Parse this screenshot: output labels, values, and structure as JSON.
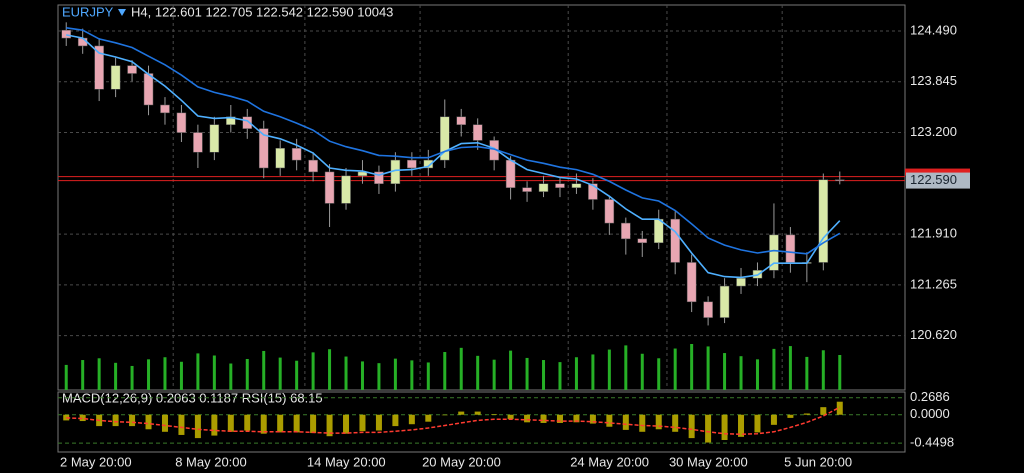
{
  "chart_data": {
    "type": "candlestick",
    "symbol": "EURJPY",
    "info": "H4, 122.601 122.705 122.542 122.590 10043",
    "categories": [
      "2 May 20:00",
      null,
      null,
      null,
      null,
      null,
      null,
      "8 May 20:00",
      null,
      null,
      null,
      null,
      null,
      null,
      null,
      "14 May 20:00",
      null,
      null,
      null,
      null,
      null,
      null,
      "20 May 20:00",
      null,
      null,
      null,
      null,
      null,
      null,
      null,
      null,
      "24 May 20:00",
      null,
      null,
      null,
      null,
      null,
      "30 May 20:00",
      null,
      null,
      null,
      null,
      null,
      null,
      "5 Jun 20:00",
      null,
      null,
      null
    ],
    "open": [
      124.5,
      124.4,
      124.3,
      123.75,
      124.05,
      123.95,
      123.55,
      123.45,
      123.2,
      122.95,
      123.3,
      123.4,
      123.25,
      122.75,
      123.0,
      122.85,
      122.7,
      122.3,
      122.65,
      122.7,
      122.55,
      122.85,
      122.75,
      122.85,
      123.4,
      123.3,
      123.1,
      122.85,
      122.5,
      122.45,
      122.55,
      122.5,
      122.55,
      122.35,
      122.05,
      121.85,
      121.8,
      122.1,
      121.55,
      121.05,
      120.85,
      121.25,
      121.35,
      121.45,
      121.9,
      121.55,
      121.55,
      122.601
    ],
    "high": [
      124.6,
      124.52,
      124.4,
      124.15,
      124.12,
      124.05,
      123.65,
      123.55,
      123.3,
      123.4,
      123.55,
      123.5,
      123.35,
      123.1,
      123.12,
      122.95,
      122.8,
      122.75,
      122.85,
      122.78,
      122.95,
      122.95,
      122.98,
      123.62,
      123.5,
      123.38,
      123.15,
      122.9,
      122.58,
      122.65,
      122.62,
      122.68,
      122.62,
      122.4,
      122.12,
      121.95,
      122.22,
      122.2,
      121.65,
      121.12,
      121.35,
      121.48,
      121.55,
      122.3,
      122.0,
      121.68,
      122.68,
      122.705
    ],
    "low": [
      124.3,
      124.2,
      123.6,
      123.65,
      123.85,
      123.42,
      123.3,
      123.08,
      122.75,
      122.85,
      123.2,
      123.12,
      122.62,
      122.65,
      122.72,
      122.58,
      122.0,
      122.22,
      122.55,
      122.42,
      122.45,
      122.65,
      122.65,
      122.75,
      123.15,
      122.98,
      122.72,
      122.35,
      122.32,
      122.38,
      122.38,
      122.42,
      122.22,
      121.9,
      121.65,
      121.62,
      121.72,
      121.4,
      120.92,
      120.75,
      120.78,
      121.15,
      121.25,
      121.35,
      121.42,
      121.3,
      121.45,
      122.542
    ],
    "close": [
      124.4,
      124.3,
      123.75,
      124.05,
      123.95,
      123.55,
      123.45,
      123.2,
      122.95,
      123.3,
      123.4,
      123.25,
      122.75,
      123.0,
      122.85,
      122.7,
      122.3,
      122.65,
      122.7,
      122.55,
      122.85,
      122.75,
      122.85,
      123.4,
      123.3,
      123.1,
      122.85,
      122.5,
      122.45,
      122.55,
      122.5,
      122.55,
      122.35,
      122.05,
      121.85,
      121.8,
      122.1,
      121.55,
      121.05,
      120.85,
      121.25,
      121.35,
      121.45,
      121.9,
      121.55,
      121.55,
      122.6,
      122.59
    ],
    "colors": {
      "up": "#d9e9a8",
      "down": "#e8a6b2",
      "wick": "#9a9a9a"
    },
    "ylim": [
      119.93,
      124.82
    ],
    "yticks": [
      {
        "value": 124.49,
        "label": "124.490"
      },
      123.845,
      {
        "value": 123.2,
        "label": "123.200"
      },
      {
        "value": 121.91,
        "label": "121.910"
      },
      121.265,
      {
        "value": 120.62,
        "label": "120.620"
      }
    ],
    "grid": true,
    "current_price": {
      "value": 122.59,
      "label": "122.590",
      "color": "#e02020"
    },
    "moving_averages": [
      {
        "color": "#4fb0ff",
        "values": [
          124.44,
          124.4,
          124.21,
          124.16,
          124.1,
          123.94,
          123.79,
          123.61,
          123.41,
          123.38,
          123.39,
          123.35,
          123.17,
          123.12,
          123.04,
          122.94,
          122.75,
          122.72,
          122.71,
          122.66,
          122.72,
          122.73,
          122.77,
          122.96,
          123.06,
          123.07,
          123.0,
          122.85,
          122.73,
          122.68,
          122.63,
          122.61,
          122.53,
          122.39,
          122.23,
          122.1,
          122.1,
          121.94,
          121.67,
          121.42,
          121.37,
          121.36,
          121.39,
          121.54,
          121.54,
          121.54,
          121.86,
          122.08
        ]
      },
      {
        "color": "#1f74e0",
        "values": [
          124.53,
          124.5,
          124.39,
          124.34,
          124.28,
          124.17,
          124.06,
          123.93,
          123.78,
          123.71,
          123.66,
          123.6,
          123.47,
          123.4,
          123.32,
          123.23,
          123.09,
          123.02,
          122.97,
          122.91,
          122.9,
          122.88,
          122.88,
          122.96,
          123.01,
          123.02,
          122.99,
          122.92,
          122.85,
          122.81,
          122.76,
          122.73,
          122.67,
          122.58,
          122.47,
          122.37,
          122.33,
          122.21,
          122.04,
          121.86,
          121.77,
          121.71,
          121.67,
          121.7,
          121.68,
          121.66,
          121.8,
          121.92
        ]
      }
    ],
    "volume": {
      "color": "#26b026",
      "values": [
        7200,
        8600,
        9100,
        7800,
        6900,
        8800,
        9400,
        8100,
        10500,
        9900,
        7600,
        8900,
        11200,
        9300,
        8400,
        10800,
        11700,
        9600,
        8200,
        7700,
        9000,
        8500,
        7900,
        10900,
        12100,
        9800,
        8700,
        11300,
        9200,
        8600,
        8000,
        9400,
        10200,
        11600,
        12800,
        10400,
        9100,
        11900,
        13200,
        12500,
        10600,
        9700,
        8800,
        11800,
        12600,
        9500,
        11400,
        10043
      ]
    },
    "macd": {
      "label": "MACD(12,26,9) 0.2063 0.1187 RSI(15) 68.15",
      "ylim": [
        -0.59,
        0.36
      ],
      "yticks": [
        0.2686,
        {
          "value": 0,
          "label": "0.0000"
        },
        -0.4498
      ],
      "histogram": {
        "color": "#c9b800",
        "values": [
          -0.09,
          -0.1,
          -0.18,
          -0.18,
          -0.18,
          -0.23,
          -0.27,
          -0.32,
          -0.37,
          -0.33,
          -0.27,
          -0.25,
          -0.3,
          -0.28,
          -0.28,
          -0.29,
          -0.34,
          -0.3,
          -0.26,
          -0.25,
          -0.18,
          -0.15,
          -0.11,
          0.0,
          0.05,
          0.05,
          0.01,
          -0.07,
          -0.12,
          -0.13,
          -0.13,
          -0.12,
          -0.14,
          -0.19,
          -0.24,
          -0.27,
          -0.23,
          -0.27,
          -0.37,
          -0.44,
          -0.4,
          -0.35,
          -0.28,
          -0.16,
          -0.05,
          0.02,
          0.12,
          0.2063
        ]
      },
      "signal": {
        "color": "#ff3b30",
        "values": [
          -0.05,
          -0.06,
          -0.09,
          -0.11,
          -0.12,
          -0.14,
          -0.17,
          -0.2,
          -0.23,
          -0.25,
          -0.26,
          -0.26,
          -0.27,
          -0.27,
          -0.27,
          -0.28,
          -0.29,
          -0.29,
          -0.28,
          -0.28,
          -0.26,
          -0.24,
          -0.21,
          -0.17,
          -0.13,
          -0.09,
          -0.07,
          -0.07,
          -0.08,
          -0.09,
          -0.1,
          -0.1,
          -0.11,
          -0.13,
          -0.15,
          -0.17,
          -0.18,
          -0.2,
          -0.23,
          -0.27,
          -0.3,
          -0.31,
          -0.3,
          -0.27,
          -0.2,
          -0.12,
          -0.02,
          0.1187
        ]
      }
    }
  }
}
